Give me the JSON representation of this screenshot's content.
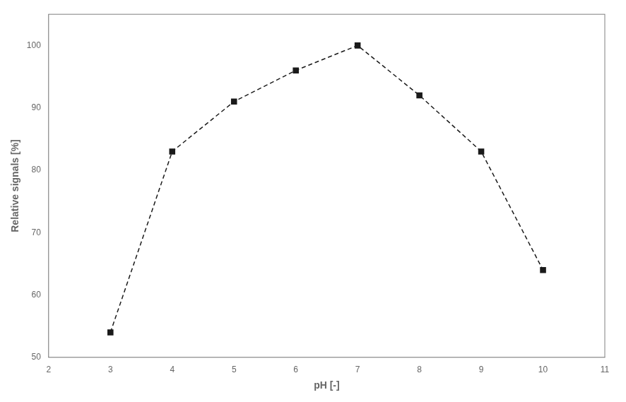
{
  "chart_data": {
    "type": "line",
    "x": [
      3,
      4,
      5,
      6,
      7,
      8,
      9,
      10
    ],
    "values": [
      54,
      83,
      91,
      96,
      100,
      92,
      83,
      64
    ],
    "xlabel": "pH [-]",
    "ylabel": "Relative signals [%]",
    "xlim": [
      2,
      11
    ],
    "ylim": [
      50,
      105
    ],
    "xticks": [
      2,
      3,
      4,
      5,
      6,
      7,
      8,
      9,
      10,
      11
    ],
    "yticks": [
      50,
      60,
      70,
      80,
      90,
      100
    ],
    "color": "#1a1a1a",
    "marker": "square",
    "line_style": "dashed",
    "grid": false
  }
}
